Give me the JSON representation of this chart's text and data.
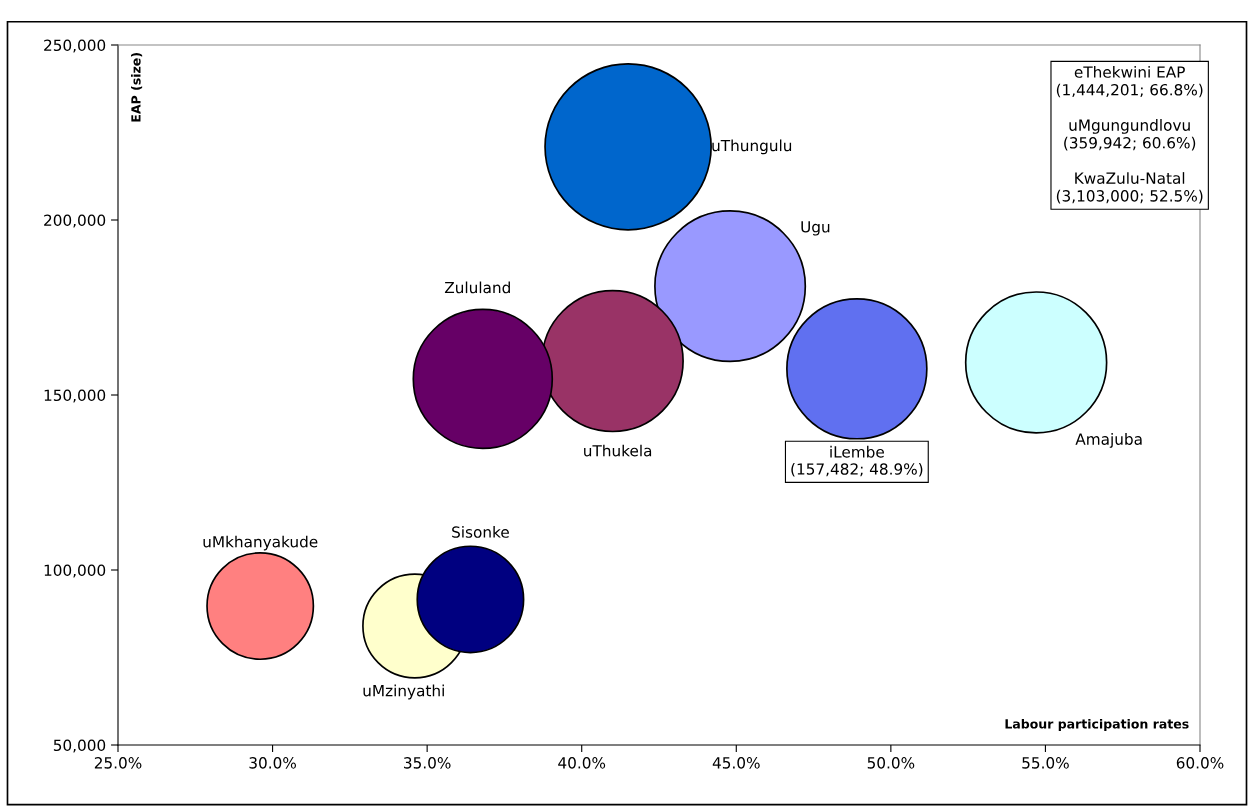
{
  "chart_data": {
    "type": "bubble",
    "xlabel": "Labour participation rates",
    "ylabel": "EAP (size)",
    "xlim": [
      25,
      60
    ],
    "xticks": [
      {
        "value": 25,
        "label": "25.0%"
      },
      {
        "value": 30,
        "label": "30.0%"
      },
      {
        "value": 35,
        "label": "35.0%"
      },
      {
        "value": 40,
        "label": "40.0%"
      },
      {
        "value": 45,
        "label": "45.0%"
      },
      {
        "value": 50,
        "label": "50.0%"
      },
      {
        "value": 55,
        "label": "55.0%"
      },
      {
        "value": 60,
        "label": "60.0%"
      }
    ],
    "ylim": [
      50000,
      250000
    ],
    "yticks": [
      {
        "value": 50000,
        "label": "50,000"
      },
      {
        "value": 100000,
        "label": "100,000"
      },
      {
        "value": 150000,
        "label": "150,000"
      },
      {
        "value": 200000,
        "label": "200,000"
      },
      {
        "value": 250000,
        "label": "250,000"
      }
    ],
    "grid": false,
    "legend": false,
    "series": [
      {
        "name": "uThungulu",
        "color": "#0066cc",
        "x": [
          41.5
        ],
        "values": [
          220900
        ],
        "sizes": [
          1
        ]
      },
      {
        "name": "Ugu",
        "color": "#9999ff",
        "x": [
          44.8
        ],
        "values": [
          181100
        ],
        "sizes": [
          0.82
        ]
      },
      {
        "name": "uThukela",
        "color": "#993366",
        "x": [
          41.0
        ],
        "values": [
          159700
        ],
        "sizes": [
          0.72
        ]
      },
      {
        "name": "Zululand",
        "color": "#660066",
        "x": [
          36.8
        ],
        "values": [
          154600
        ],
        "sizes": [
          0.7
        ]
      },
      {
        "name": "iLembe",
        "color": "#6070f0",
        "x": [
          48.9
        ],
        "values": [
          157482
        ],
        "sizes": [
          0.71
        ],
        "value_labels": [
          "(157,482; 48.9%)"
        ]
      },
      {
        "name": "Amajuba",
        "color": "#ccffff",
        "x": [
          54.7
        ],
        "values": [
          159300
        ],
        "sizes": [
          0.72
        ]
      },
      {
        "name": "uMkhanyakude",
        "color": "#ff8080",
        "x": [
          29.6
        ],
        "values": [
          89700
        ],
        "sizes": [
          0.41
        ]
      },
      {
        "name": "uMzinyathi",
        "color": "#ffffcc",
        "x": [
          34.6
        ],
        "values": [
          84000
        ],
        "sizes": [
          0.39
        ]
      },
      {
        "name": "Sisonke",
        "color": "#000080",
        "x": [
          36.4
        ],
        "values": [
          91600
        ],
        "sizes": [
          0.41
        ]
      }
    ],
    "annotations": [
      "eThekwini EAP\n(1,444,201; 66.8%)\n\nuMgungundlovu\n(359,942; 60.6%)\n\nKwaZulu-Natal\n(3,103,000; 52.5%)"
    ]
  }
}
